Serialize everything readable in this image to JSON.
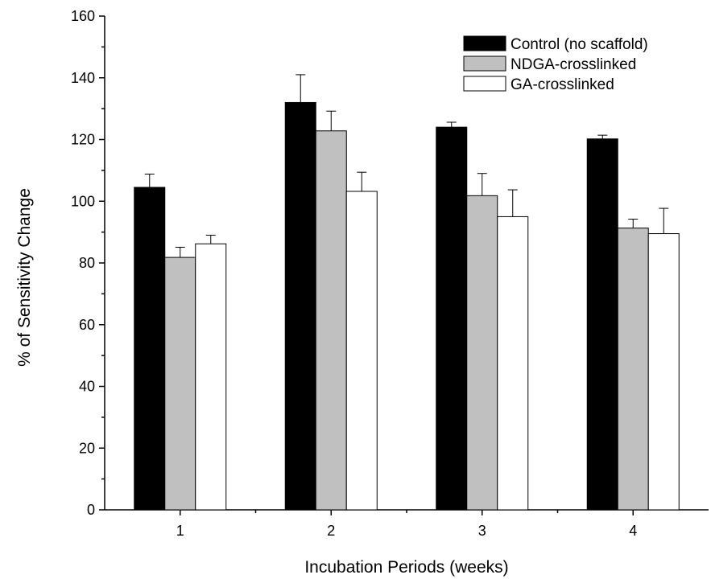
{
  "chart_data": {
    "type": "bar",
    "title": "",
    "xlabel": "Incubation Periods (weeks)",
    "ylabel": "% of Sensitivity Change",
    "categories": [
      "1",
      "2",
      "3",
      "4"
    ],
    "ylim": [
      0,
      160
    ],
    "yticks": [
      0,
      20,
      40,
      60,
      80,
      100,
      120,
      140,
      160
    ],
    "legend_position": "top-right",
    "grid": false,
    "series": [
      {
        "name": "Control (no scaffold)",
        "color": "#000000",
        "values": [
          104.5,
          132,
          124,
          120.2
        ],
        "errors": [
          4.3,
          9,
          1.6,
          1.2
        ]
      },
      {
        "name": "NDGA-crosslinked",
        "color": "#c0c0c0",
        "values": [
          81.8,
          122.8,
          101.8,
          91.3
        ],
        "errors": [
          3.3,
          6.4,
          7.2,
          2.9
        ]
      },
      {
        "name": "GA-crosslinked",
        "color": "#ffffff",
        "values": [
          86.2,
          103.2,
          95,
          89.5
        ],
        "errors": [
          2.8,
          6.2,
          8.7,
          8.2
        ]
      }
    ]
  }
}
